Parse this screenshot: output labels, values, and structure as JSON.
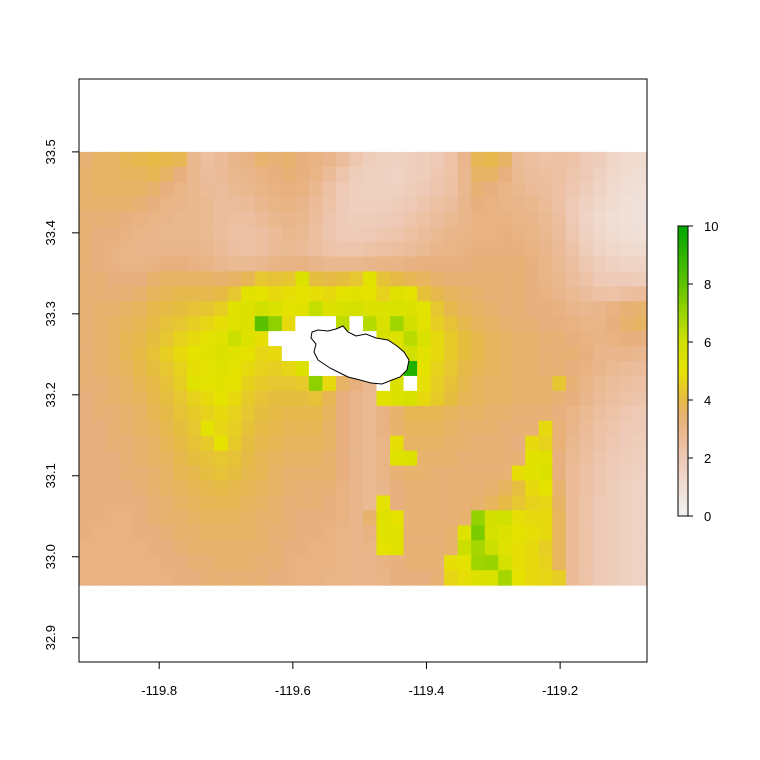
{
  "chart_data": {
    "type": "heatmap",
    "title": "",
    "xlabel": "",
    "ylabel": "",
    "xlim": [
      -119.92,
      -119.07
    ],
    "ylim": [
      32.87,
      33.59
    ],
    "raster_extent": {
      "x": [
        -119.92,
        -119.07
      ],
      "y": [
        32.965,
        33.5
      ]
    },
    "x_ticks": [
      {
        "value": -119.8,
        "label": "-119.8"
      },
      {
        "value": -119.6,
        "label": "-119.6"
      },
      {
        "value": -119.4,
        "label": "-119.4"
      },
      {
        "value": -119.2,
        "label": "-119.2"
      }
    ],
    "y_ticks": [
      {
        "value": 32.9,
        "label": "32.9"
      },
      {
        "value": 33.0,
        "label": "33.0"
      },
      {
        "value": 33.1,
        "label": "33.1"
      },
      {
        "value": 33.2,
        "label": "33.2"
      },
      {
        "value": 33.3,
        "label": "33.3"
      },
      {
        "value": 33.4,
        "label": "33.4"
      },
      {
        "value": 33.5,
        "label": "33.5"
      }
    ],
    "legend": {
      "placement": "right",
      "range": [
        0,
        10
      ],
      "ticks": [
        {
          "value": 0,
          "label": "0"
        },
        {
          "value": 2,
          "label": "2"
        },
        {
          "value": 4,
          "label": "4"
        },
        {
          "value": 6,
          "label": "6"
        },
        {
          "value": 8,
          "label": "8"
        },
        {
          "value": 10,
          "label": "10"
        }
      ]
    },
    "color_stops": [
      {
        "value": 0,
        "color": "#f2f2f2"
      },
      {
        "value": 2,
        "color": "#eec9b5"
      },
      {
        "value": 3.3,
        "color": "#e8b07e"
      },
      {
        "value": 4,
        "color": "#e6ba46"
      },
      {
        "value": 5,
        "color": "#e6e200"
      },
      {
        "value": 6,
        "color": "#cfe000"
      },
      {
        "value": 7,
        "color": "#9ad400"
      },
      {
        "value": 8,
        "color": "#5ec200"
      },
      {
        "value": 10,
        "color": "#00a600"
      }
    ],
    "na_color": "#ffffff",
    "grid_values": [
      [
        3.4,
        3.6,
        3.6,
        3.8,
        3.9,
        4.0,
        3.9,
        3.8,
        2.9,
        2.5,
        2.7,
        3.0,
        3.2,
        3.5,
        3.4,
        3.5,
        3.3,
        3.2,
        3.0,
        2.6,
        2.1,
        1.8,
        1.6,
        1.6,
        1.7,
        1.8,
        2.0,
        2.3,
        3.0,
        3.8,
        3.9,
        3.6,
        2.7,
        2.5,
        2.3,
        2.4,
        2.3,
        2.0,
        1.8,
        1.4,
        1.2,
        1.1
      ],
      [
        3.5,
        3.6,
        3.6,
        3.7,
        3.7,
        3.8,
        3.6,
        3.3,
        2.9,
        2.6,
        2.7,
        2.9,
        3.0,
        3.2,
        3.3,
        3.4,
        3.3,
        3.1,
        2.7,
        2.2,
        1.8,
        1.6,
        1.6,
        1.5,
        1.7,
        1.8,
        2.1,
        2.3,
        2.9,
        3.6,
        3.6,
        3.3,
        2.8,
        2.6,
        2.5,
        2.4,
        2.2,
        2.0,
        1.6,
        1.3,
        1.1,
        1.0
      ],
      [
        3.5,
        3.6,
        3.6,
        3.6,
        3.6,
        3.5,
        3.3,
        3.1,
        2.9,
        2.7,
        2.6,
        2.8,
        2.9,
        3.1,
        3.2,
        3.3,
        3.2,
        2.9,
        2.4,
        2.0,
        1.7,
        1.6,
        1.6,
        1.6,
        1.8,
        2.0,
        2.2,
        2.4,
        2.9,
        3.4,
        3.3,
        3.1,
        2.9,
        2.7,
        2.6,
        2.4,
        2.1,
        1.8,
        1.5,
        1.2,
        1.0,
        0.9
      ],
      [
        3.5,
        3.5,
        3.5,
        3.5,
        3.4,
        3.3,
        3.1,
        3.0,
        2.9,
        2.8,
        2.6,
        2.6,
        2.7,
        2.9,
        3.1,
        3.2,
        3.0,
        2.7,
        2.3,
        1.9,
        1.7,
        1.7,
        1.7,
        1.8,
        2.0,
        2.2,
        2.4,
        2.6,
        3.0,
        3.3,
        3.2,
        3.1,
        3.0,
        2.9,
        2.7,
        2.4,
        2.0,
        1.6,
        1.3,
        1.1,
        0.9,
        0.8
      ],
      [
        3.4,
        3.4,
        3.4,
        3.3,
        3.2,
        3.1,
        3.0,
        2.9,
        2.9,
        2.8,
        2.6,
        2.5,
        2.5,
        2.7,
        2.9,
        3.0,
        2.9,
        2.6,
        2.2,
        1.9,
        1.8,
        1.8,
        1.9,
        2.0,
        2.2,
        2.4,
        2.6,
        2.8,
        3.0,
        3.2,
        3.2,
        3.2,
        3.1,
        3.0,
        2.8,
        2.5,
        2.0,
        1.5,
        1.2,
        1.0,
        0.9,
        0.8
      ],
      [
        3.4,
        3.3,
        3.3,
        3.2,
        3.1,
        3.0,
        2.9,
        2.9,
        2.9,
        2.8,
        2.6,
        2.4,
        2.4,
        2.5,
        2.7,
        2.9,
        2.8,
        2.5,
        2.2,
        2.0,
        1.9,
        2.0,
        2.1,
        2.2,
        2.4,
        2.6,
        2.8,
        3.0,
        3.1,
        3.2,
        3.2,
        3.3,
        3.2,
        3.1,
        2.9,
        2.6,
        2.1,
        1.6,
        1.3,
        1.1,
        1.0,
        0.9
      ],
      [
        3.4,
        3.3,
        3.2,
        3.1,
        3.0,
        3.0,
        3.0,
        3.0,
        3.0,
        2.9,
        2.7,
        2.5,
        2.4,
        2.5,
        2.7,
        2.8,
        2.7,
        2.5,
        2.3,
        2.2,
        2.2,
        2.3,
        2.4,
        2.5,
        2.6,
        2.8,
        3.0,
        3.1,
        3.2,
        3.3,
        3.3,
        3.3,
        3.3,
        3.2,
        3.0,
        2.7,
        2.3,
        1.8,
        1.5,
        1.3,
        1.2,
        1.1
      ],
      [
        3.4,
        3.3,
        3.2,
        3.1,
        3.1,
        3.2,
        3.3,
        3.3,
        3.2,
        3.1,
        2.9,
        2.8,
        2.8,
        2.9,
        3.1,
        3.2,
        3.2,
        3.0,
        2.9,
        2.9,
        2.9,
        3.0,
        3.1,
        3.1,
        3.2,
        3.3,
        3.3,
        3.3,
        3.3,
        3.4,
        3.4,
        3.4,
        3.4,
        3.3,
        3.1,
        2.8,
        2.5,
        2.1,
        1.8,
        1.6,
        1.5,
        1.5
      ],
      [
        3.4,
        3.4,
        3.3,
        3.3,
        3.3,
        3.5,
        3.6,
        3.6,
        3.6,
        3.6,
        3.5,
        3.6,
        3.8,
        4.3,
        4.2,
        4.3,
        5.5,
        4.1,
        4.0,
        4.1,
        4.3,
        5.2,
        4.2,
        4.0,
        3.8,
        3.7,
        3.5,
        3.4,
        3.4,
        3.4,
        3.4,
        3.4,
        3.4,
        3.3,
        3.1,
        2.9,
        2.6,
        2.3,
        2.0,
        1.9,
        1.9,
        1.8
      ],
      [
        3.4,
        3.4,
        3.4,
        3.4,
        3.5,
        3.7,
        3.8,
        3.9,
        3.9,
        3.9,
        4.0,
        4.3,
        5.2,
        5.0,
        4.8,
        4.9,
        5.0,
        4.9,
        4.8,
        5.1,
        5.2,
        5.0,
        4.6,
        5.3,
        5.1,
        4.2,
        3.9,
        3.7,
        3.6,
        3.5,
        3.4,
        3.4,
        3.4,
        3.3,
        3.2,
        3.0,
        2.8,
        2.6,
        2.4,
        2.3,
        2.5,
        2.6
      ],
      [
        3.4,
        3.5,
        3.5,
        3.6,
        3.7,
        3.9,
        4.0,
        4.1,
        4.2,
        4.3,
        4.5,
        5.2,
        5.4,
        5.9,
        5.6,
        5.1,
        5.2,
        6.2,
        5.4,
        5.7,
        5.8,
        5.5,
        5.5,
        5.6,
        5.5,
        5.1,
        4.3,
        3.9,
        3.7,
        3.6,
        3.5,
        3.4,
        3.4,
        3.3,
        3.3,
        3.2,
        3.0,
        2.9,
        3.0,
        3.2,
        3.4,
        3.5
      ],
      [
        3.4,
        3.5,
        3.6,
        3.7,
        3.8,
        4.0,
        4.2,
        4.3,
        4.5,
        4.7,
        4.9,
        5.3,
        5.5,
        8.1,
        7.2,
        4.8,
        null,
        null,
        null,
        6.3,
        null,
        6.5,
        5.6,
        6.9,
        5.9,
        5.2,
        4.5,
        4.2,
        3.9,
        3.7,
        3.6,
        3.5,
        3.4,
        3.4,
        3.3,
        3.3,
        3.2,
        3.1,
        3.1,
        3.3,
        3.5,
        3.6
      ],
      [
        3.4,
        3.5,
        3.6,
        3.8,
        3.9,
        4.1,
        4.3,
        4.6,
        4.8,
        5.1,
        5.3,
        6.1,
        5.4,
        4.9,
        null,
        null,
        null,
        null,
        null,
        null,
        null,
        null,
        5.7,
        5.3,
        6.4,
        5.6,
        4.8,
        4.4,
        4.1,
        3.9,
        3.7,
        3.6,
        3.5,
        3.5,
        3.4,
        3.4,
        3.3,
        3.2,
        3.1,
        3.2,
        3.3,
        3.3
      ],
      [
        3.4,
        3.5,
        3.6,
        3.8,
        4.0,
        4.2,
        4.5,
        4.8,
        5.0,
        5.2,
        5.4,
        5.3,
        5.0,
        4.7,
        4.8,
        null,
        null,
        null,
        null,
        null,
        null,
        null,
        null,
        5.6,
        5.9,
        5.2,
        4.8,
        4.4,
        4.1,
        3.9,
        3.7,
        3.6,
        3.5,
        3.5,
        3.4,
        3.4,
        3.4,
        3.3,
        3.0,
        3.0,
        3.0,
        2.9
      ],
      [
        3.4,
        3.5,
        3.6,
        3.7,
        3.9,
        4.1,
        4.3,
        4.6,
        4.9,
        5.1,
        5.3,
        5.1,
        4.8,
        4.6,
        4.5,
        4.7,
        5.4,
        null,
        null,
        null,
        null,
        null,
        5.2,
        5.4,
        9.3,
        5.0,
        4.6,
        4.3,
        4.0,
        3.8,
        3.7,
        3.6,
        3.5,
        3.5,
        3.4,
        3.4,
        3.3,
        3.2,
        3.0,
        2.8,
        2.7,
        2.6
      ],
      [
        3.4,
        3.4,
        3.5,
        3.6,
        3.8,
        4.0,
        4.2,
        4.5,
        5.3,
        5.1,
        5.2,
        5.0,
        4.6,
        4.4,
        4.3,
        4.3,
        4.4,
        7.2,
        4.8,
        3.6,
        3.3,
        2.9,
        null,
        5.5,
        null,
        4.9,
        4.5,
        4.2,
        3.9,
        3.7,
        3.6,
        3.6,
        3.5,
        3.5,
        3.5,
        4.3,
        3.4,
        3.1,
        2.8,
        2.6,
        2.5,
        2.4
      ],
      [
        3.3,
        3.4,
        3.5,
        3.6,
        3.7,
        3.9,
        4.1,
        4.3,
        4.6,
        4.8,
        5.0,
        4.8,
        4.4,
        4.2,
        4.1,
        4.1,
        4.1,
        4.2,
        3.8,
        3.3,
        3.0,
        2.8,
        5.2,
        5.5,
        5.7,
        4.8,
        4.4,
        4.1,
        3.8,
        3.7,
        3.6,
        3.6,
        3.5,
        3.5,
        3.5,
        3.4,
        3.3,
        3.0,
        2.7,
        2.5,
        2.3,
        2.2
      ],
      [
        3.3,
        3.4,
        3.4,
        3.5,
        3.6,
        3.8,
        4.0,
        4.2,
        4.4,
        4.6,
        4.8,
        4.6,
        4.3,
        4.1,
        4.0,
        3.9,
        3.9,
        3.9,
        3.7,
        3.3,
        3.0,
        2.8,
        3.2,
        3.5,
        3.8,
        3.8,
        3.8,
        3.7,
        3.6,
        3.6,
        3.5,
        3.5,
        3.4,
        3.4,
        3.4,
        3.3,
        3.1,
        2.8,
        2.5,
        2.3,
        2.1,
        2.0
      ],
      [
        3.3,
        3.3,
        3.4,
        3.5,
        3.6,
        3.7,
        3.9,
        4.1,
        4.3,
        5.1,
        4.7,
        4.5,
        4.2,
        4.0,
        3.9,
        3.8,
        3.8,
        3.8,
        3.6,
        3.3,
        3.0,
        2.8,
        3.2,
        3.5,
        3.7,
        3.7,
        3.7,
        3.6,
        3.5,
        3.5,
        3.5,
        3.4,
        3.4,
        3.4,
        4.8,
        3.4,
        3.0,
        2.7,
        2.4,
        2.2,
        2.0,
        1.9
      ],
      [
        3.3,
        3.3,
        3.4,
        3.4,
        3.5,
        3.6,
        3.8,
        4.0,
        4.2,
        4.4,
        5.0,
        4.4,
        4.1,
        3.9,
        3.8,
        3.7,
        3.7,
        3.7,
        3.6,
        3.3,
        3.0,
        2.8,
        3.1,
        4.9,
        3.6,
        3.6,
        3.6,
        3.5,
        3.5,
        3.4,
        3.4,
        3.4,
        3.3,
        4.8,
        4.6,
        3.4,
        2.9,
        2.6,
        2.3,
        2.1,
        1.9,
        1.8
      ],
      [
        3.3,
        3.3,
        3.3,
        3.4,
        3.5,
        3.6,
        3.7,
        3.9,
        4.1,
        4.2,
        4.3,
        4.2,
        4.0,
        3.8,
        3.7,
        3.6,
        3.6,
        3.6,
        3.5,
        3.3,
        3.0,
        2.8,
        3.1,
        5.3,
        5.4,
        3.5,
        3.5,
        3.5,
        3.4,
        3.4,
        3.4,
        3.4,
        3.4,
        5.2,
        5.3,
        3.3,
        2.8,
        2.5,
        2.2,
        2.0,
        1.8,
        1.7
      ],
      [
        3.3,
        3.3,
        3.3,
        3.4,
        3.4,
        3.5,
        3.6,
        3.8,
        3.9,
        4.1,
        4.2,
        4.1,
        3.9,
        3.8,
        3.6,
        3.5,
        3.5,
        3.5,
        3.5,
        3.3,
        3.0,
        2.8,
        3.1,
        3.4,
        3.5,
        3.5,
        3.4,
        3.4,
        3.4,
        3.4,
        3.4,
        3.4,
        4.9,
        5.2,
        5.5,
        3.3,
        2.7,
        2.4,
        2.1,
        1.9,
        1.7,
        1.6
      ],
      [
        3.3,
        3.3,
        3.3,
        3.3,
        3.4,
        3.5,
        3.6,
        3.7,
        3.8,
        3.9,
        4.0,
        3.9,
        3.8,
        3.7,
        3.6,
        3.5,
        3.4,
        3.4,
        3.4,
        3.2,
        3.0,
        2.8,
        3.0,
        3.3,
        3.4,
        3.4,
        3.4,
        3.4,
        3.4,
        3.4,
        3.5,
        3.7,
        4.1,
        4.8,
        5.0,
        3.5,
        2.7,
        2.4,
        2.1,
        1.8,
        1.6,
        1.5
      ],
      [
        3.3,
        3.3,
        3.3,
        3.3,
        3.3,
        3.4,
        3.5,
        3.6,
        3.7,
        3.8,
        3.8,
        3.8,
        3.7,
        3.6,
        3.5,
        3.4,
        3.4,
        3.4,
        3.3,
        3.2,
        3.0,
        2.8,
        5.1,
        3.3,
        3.4,
        3.4,
        3.4,
        3.4,
        3.4,
        3.5,
        3.7,
        4.0,
        4.3,
        4.6,
        4.7,
        3.6,
        2.7,
        2.3,
        2.0,
        1.8,
        1.6,
        1.5
      ],
      [
        3.3,
        3.3,
        3.2,
        3.2,
        3.3,
        3.4,
        3.5,
        3.5,
        3.6,
        3.7,
        3.7,
        3.7,
        3.6,
        3.5,
        3.5,
        3.4,
        3.3,
        3.3,
        3.3,
        3.2,
        3.0,
        3.5,
        5.3,
        5.0,
        3.4,
        3.4,
        3.4,
        3.4,
        3.5,
        7.1,
        5.9,
        6.0,
        4.9,
        4.8,
        4.8,
        3.7,
        2.7,
        2.3,
        2.0,
        1.8,
        1.6,
        1.5
      ],
      [
        3.3,
        3.2,
        3.2,
        3.2,
        3.3,
        3.3,
        3.4,
        3.5,
        3.5,
        3.6,
        3.6,
        3.6,
        3.6,
        3.5,
        3.4,
        3.4,
        3.3,
        3.3,
        3.2,
        3.1,
        3.0,
        3.2,
        5.2,
        5.3,
        3.4,
        3.4,
        3.4,
        3.5,
        5.3,
        7.5,
        5.8,
        5.4,
        5.0,
        4.9,
        4.8,
        3.7,
        2.7,
        2.3,
        2.0,
        1.8,
        1.6,
        1.5
      ],
      [
        3.2,
        3.2,
        3.2,
        3.2,
        3.2,
        3.3,
        3.3,
        3.4,
        3.5,
        3.5,
        3.5,
        3.5,
        3.5,
        3.5,
        3.4,
        3.3,
        3.3,
        3.2,
        3.2,
        3.1,
        3.0,
        3.1,
        5.0,
        5.3,
        3.4,
        3.4,
        3.4,
        3.5,
        6.1,
        6.8,
        6.1,
        5.3,
        4.9,
        4.8,
        4.5,
        3.7,
        2.7,
        2.3,
        2.0,
        1.8,
        1.6,
        1.5
      ],
      [
        3.2,
        3.2,
        3.2,
        3.2,
        3.2,
        3.2,
        3.3,
        3.3,
        3.4,
        3.4,
        3.5,
        3.5,
        3.5,
        3.4,
        3.4,
        3.3,
        3.2,
        3.2,
        3.2,
        3.1,
        3.0,
        3.0,
        3.2,
        3.3,
        3.4,
        3.4,
        3.4,
        4.9,
        5.1,
        6.9,
        7.0,
        5.8,
        4.9,
        4.8,
        4.6,
        3.7,
        2.7,
        2.3,
        2.0,
        1.8,
        1.6,
        1.5
      ],
      [
        3.2,
        3.2,
        3.2,
        3.2,
        3.2,
        3.2,
        3.2,
        3.3,
        3.3,
        3.4,
        3.4,
        3.4,
        3.4,
        3.4,
        3.3,
        3.3,
        3.2,
        3.2,
        3.1,
        3.1,
        3.0,
        3.0,
        3.1,
        3.3,
        3.3,
        3.3,
        3.4,
        4.7,
        4.9,
        5.4,
        5.6,
        6.8,
        5.0,
        4.8,
        4.7,
        4.5,
        2.7,
        2.3,
        2.0,
        1.8,
        1.6,
        1.5
      ]
    ]
  }
}
